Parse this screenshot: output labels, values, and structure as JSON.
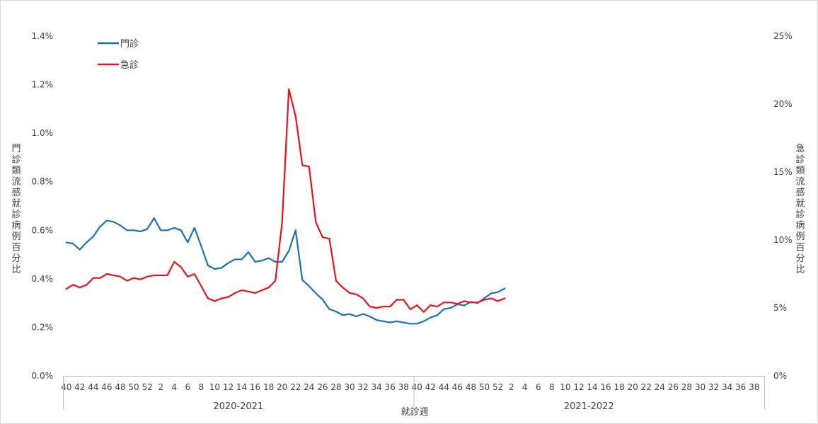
{
  "chart_data": {
    "type": "line",
    "xlabel": "就診週",
    "ylabel_left": "門診類流感就診病例百分比",
    "ylabel_right": "急診類流感就診病例百分比",
    "y_left": {
      "min": 0,
      "max": 1.4,
      "step": 0.2,
      "ticks": [
        "0.0%",
        "0.2%",
        "0.4%",
        "0.6%",
        "0.8%",
        "1.0%",
        "1.2%",
        "1.4%"
      ]
    },
    "y_right": {
      "min": 0,
      "max": 25,
      "step": 5,
      "ticks": [
        "0%",
        "5%",
        "10%",
        "15%",
        "20%",
        "25%"
      ]
    },
    "legend_position": "top-left",
    "grid": false,
    "season_groups": [
      {
        "label": "2020-2021",
        "start": 0,
        "count": 52
      },
      {
        "label": "2021-2022",
        "start": 52,
        "count": 52
      }
    ],
    "weeks": [
      40,
      41,
      42,
      43,
      44,
      45,
      46,
      47,
      48,
      49,
      50,
      51,
      52,
      1,
      2,
      3,
      4,
      5,
      6,
      7,
      8,
      9,
      10,
      11,
      12,
      13,
      14,
      15,
      16,
      17,
      18,
      19,
      20,
      21,
      22,
      23,
      24,
      25,
      26,
      27,
      28,
      29,
      30,
      31,
      32,
      33,
      34,
      35,
      36,
      37,
      38,
      39,
      40,
      41,
      42,
      43,
      44,
      45,
      46,
      47,
      48,
      49,
      50,
      51,
      52,
      1,
      2,
      3,
      4,
      5,
      6,
      7,
      8,
      9,
      10,
      11,
      12,
      13,
      14,
      15,
      16,
      17,
      18,
      19,
      20,
      21,
      22,
      23,
      24,
      25,
      26,
      27,
      28,
      29,
      30,
      31,
      32,
      33,
      34,
      35,
      36,
      37,
      38,
      39
    ],
    "series": [
      {
        "name": "門診",
        "axis": "left",
        "color": "#1f6fb4",
        "values": [
          0.55,
          0.545,
          0.52,
          0.55,
          0.575,
          0.615,
          0.64,
          0.635,
          0.62,
          0.6,
          0.6,
          0.595,
          0.605,
          0.65,
          0.6,
          0.6,
          0.61,
          0.6,
          0.55,
          0.61,
          0.535,
          0.455,
          0.44,
          0.445,
          0.465,
          0.48,
          0.48,
          0.51,
          0.47,
          0.475,
          0.485,
          0.47,
          0.47,
          0.515,
          0.6,
          0.395,
          0.37,
          0.34,
          0.315,
          0.275,
          0.265,
          0.25,
          0.255,
          0.245,
          0.255,
          0.245,
          0.23,
          0.225,
          0.22,
          0.225,
          0.22,
          0.215,
          0.215,
          0.225,
          0.24,
          0.25,
          0.275,
          0.28,
          0.295,
          0.29,
          0.305,
          0.3,
          0.32,
          0.34,
          0.345,
          0.36
        ]
      },
      {
        "name": "急診",
        "axis": "right",
        "color": "#e8141c",
        "values": [
          6.4,
          6.7,
          6.5,
          6.7,
          7.2,
          7.2,
          7.5,
          7.4,
          7.3,
          7.0,
          7.2,
          7.1,
          7.3,
          7.4,
          7.4,
          7.4,
          8.4,
          8.0,
          7.3,
          7.5,
          6.6,
          5.7,
          5.5,
          5.7,
          5.8,
          6.1,
          6.3,
          6.2,
          6.1,
          6.3,
          6.5,
          7.0,
          11.3,
          21.1,
          19.1,
          15.5,
          15.4,
          11.3,
          10.2,
          10.1,
          7.0,
          6.5,
          6.1,
          6.0,
          5.7,
          5.1,
          5.0,
          5.1,
          5.1,
          5.6,
          5.6,
          4.9,
          5.2,
          4.7,
          5.2,
          5.1,
          5.4,
          5.4,
          5.3,
          5.5,
          5.4,
          5.4,
          5.6,
          5.7,
          5.5,
          5.7
        ]
      }
    ]
  }
}
